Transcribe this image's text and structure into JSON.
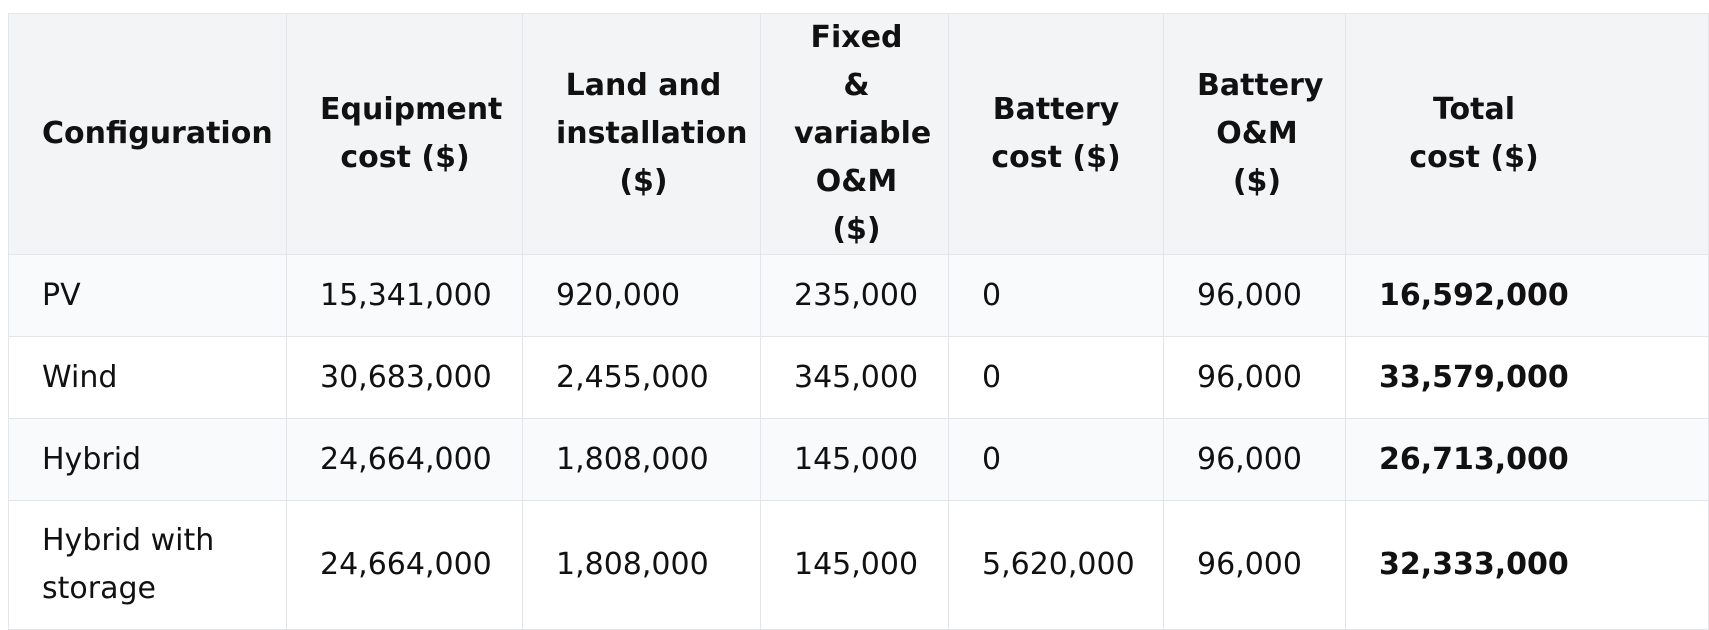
{
  "table": {
    "headers": [
      "Configuration",
      "Equipment cost ($)",
      "Land and installation ($)",
      "Fixed & variable O&M ($)",
      "Battery cost ($)",
      "Battery O&M ($)",
      "Total cost ($)"
    ],
    "rows": [
      {
        "configuration": "PV",
        "equipment_cost": "15,341,000",
        "land_installation": "920,000",
        "om": "235,000",
        "battery_cost": "0",
        "battery_om": "96,000",
        "total_cost": "16,592,000"
      },
      {
        "configuration": "Wind",
        "equipment_cost": "30,683,000",
        "land_installation": "2,455,000",
        "om": "345,000",
        "battery_cost": "0",
        "battery_om": "96,000",
        "total_cost": "33,579,000"
      },
      {
        "configuration": "Hybrid",
        "equipment_cost": "24,664,000",
        "land_installation": "1,808,000",
        "om": "145,000",
        "battery_cost": "0",
        "battery_om": "96,000",
        "total_cost": "26,713,000"
      },
      {
        "configuration": "Hybrid with storage",
        "equipment_cost": "24,664,000",
        "land_installation": "1,808,000",
        "om": "145,000",
        "battery_cost": "5,620,000",
        "battery_om": "96,000",
        "total_cost": "32,333,000"
      }
    ]
  }
}
